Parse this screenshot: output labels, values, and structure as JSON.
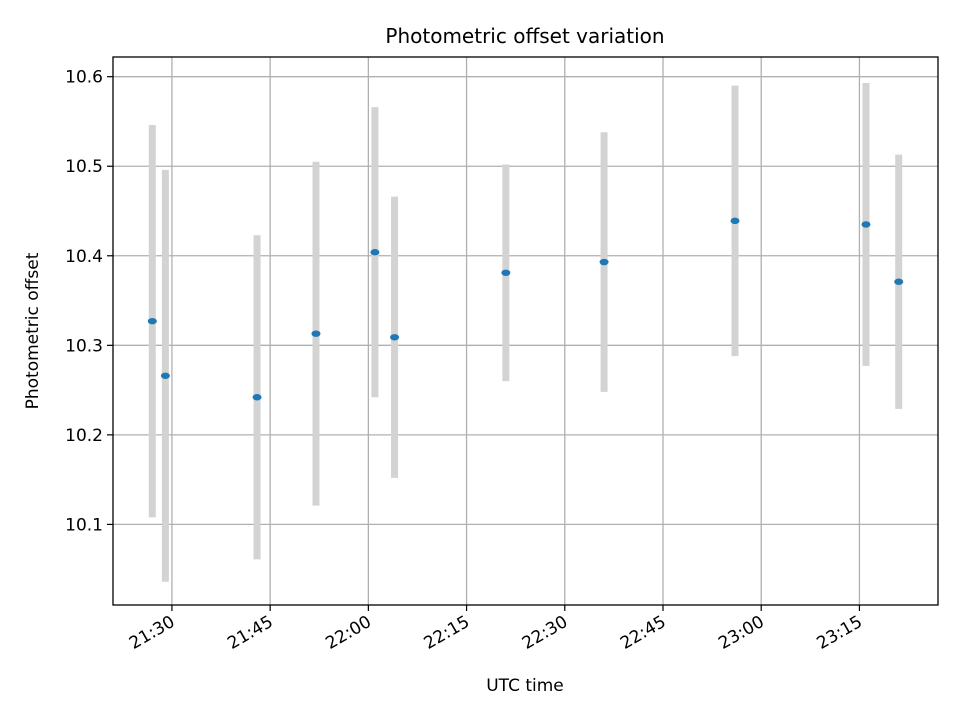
{
  "chart_data": {
    "type": "scatter",
    "title": "Photometric offset variation",
    "xlabel": "UTC time",
    "ylabel": "Photometric offset",
    "x_ticks": [
      "21:30",
      "21:45",
      "22:00",
      "22:15",
      "22:30",
      "22:45",
      "23:00",
      "23:15"
    ],
    "y_ticks": [
      10.1,
      10.2,
      10.3,
      10.4,
      10.5,
      10.6
    ],
    "xlim": [
      "21:21",
      "23:27"
    ],
    "ylim": [
      10.01,
      10.622
    ],
    "grid": true,
    "points": [
      {
        "x": "21:27",
        "y": 10.327,
        "err": 0.219
      },
      {
        "x": "21:29",
        "y": 10.266,
        "err": 0.23
      },
      {
        "x": "21:43",
        "y": 10.242,
        "err": 0.181
      },
      {
        "x": "21:52",
        "y": 10.313,
        "err": 0.192
      },
      {
        "x": "22:01",
        "y": 10.404,
        "err": 0.162
      },
      {
        "x": "22:04",
        "y": 10.309,
        "err": 0.157
      },
      {
        "x": "22:21",
        "y": 10.381,
        "err": 0.121
      },
      {
        "x": "22:36",
        "y": 10.393,
        "err": 0.145
      },
      {
        "x": "22:56",
        "y": 10.439,
        "err": 0.151
      },
      {
        "x": "23:16",
        "y": 10.435,
        "err": 0.158
      },
      {
        "x": "23:21",
        "y": 10.371,
        "err": 0.142
      }
    ],
    "colors": {
      "marker": "#1f77b4",
      "errorbar": "#d3d3d3",
      "grid": "#b0b0b0"
    }
  }
}
